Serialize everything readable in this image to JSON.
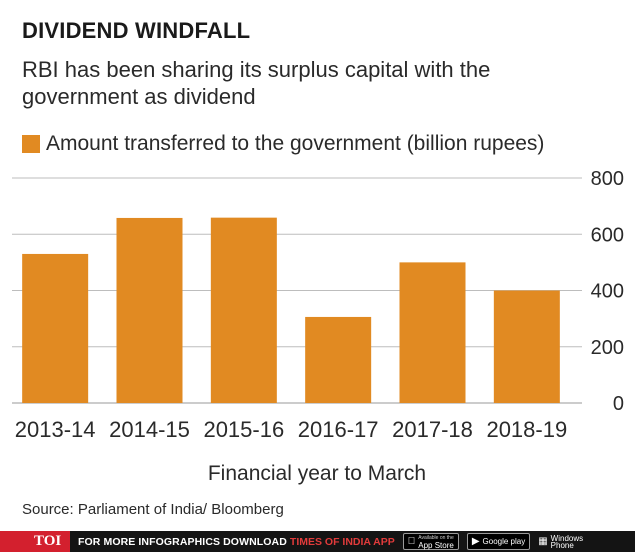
{
  "title": "DIVIDEND WINDFALL",
  "subtitle": "RBI has been sharing its surplus capital with the government as dividend",
  "colors": {
    "bar": "#e18a22",
    "grid": "#bdbdbd",
    "text": "#2a2a2a"
  },
  "chart_data": {
    "type": "bar",
    "categories": [
      "2013-14",
      "2014-15",
      "2015-16",
      "2016-17",
      "2017-18",
      "2018-19"
    ],
    "series": [
      {
        "name": "Amount transferred to the government (billion rupees)",
        "values": [
          530,
          658,
          659,
          306,
          500,
          400
        ]
      }
    ],
    "ylim": [
      0,
      800
    ],
    "yticks": [
      "0",
      "200",
      "400",
      "600",
      "800"
    ],
    "xlabel": "Financial year to March",
    "ylabel": "",
    "y_axis_side": "right",
    "legend_position": "top-left"
  },
  "source": "Source: Parliament of India/ Bloomberg",
  "footer": {
    "logo": "TOI",
    "text": "FOR MORE  INFOGRAPHICS DOWNLOAD",
    "app": "TIMES OF INDIA APP",
    "badges": [
      {
        "small": "Available on the",
        "big": "App Store",
        "icon": "apple-icon"
      },
      {
        "small": "",
        "big": "Google play",
        "icon": "google-play-icon"
      },
      {
        "small": "Windows",
        "big": "Phone",
        "icon": "windows-icon"
      }
    ]
  }
}
